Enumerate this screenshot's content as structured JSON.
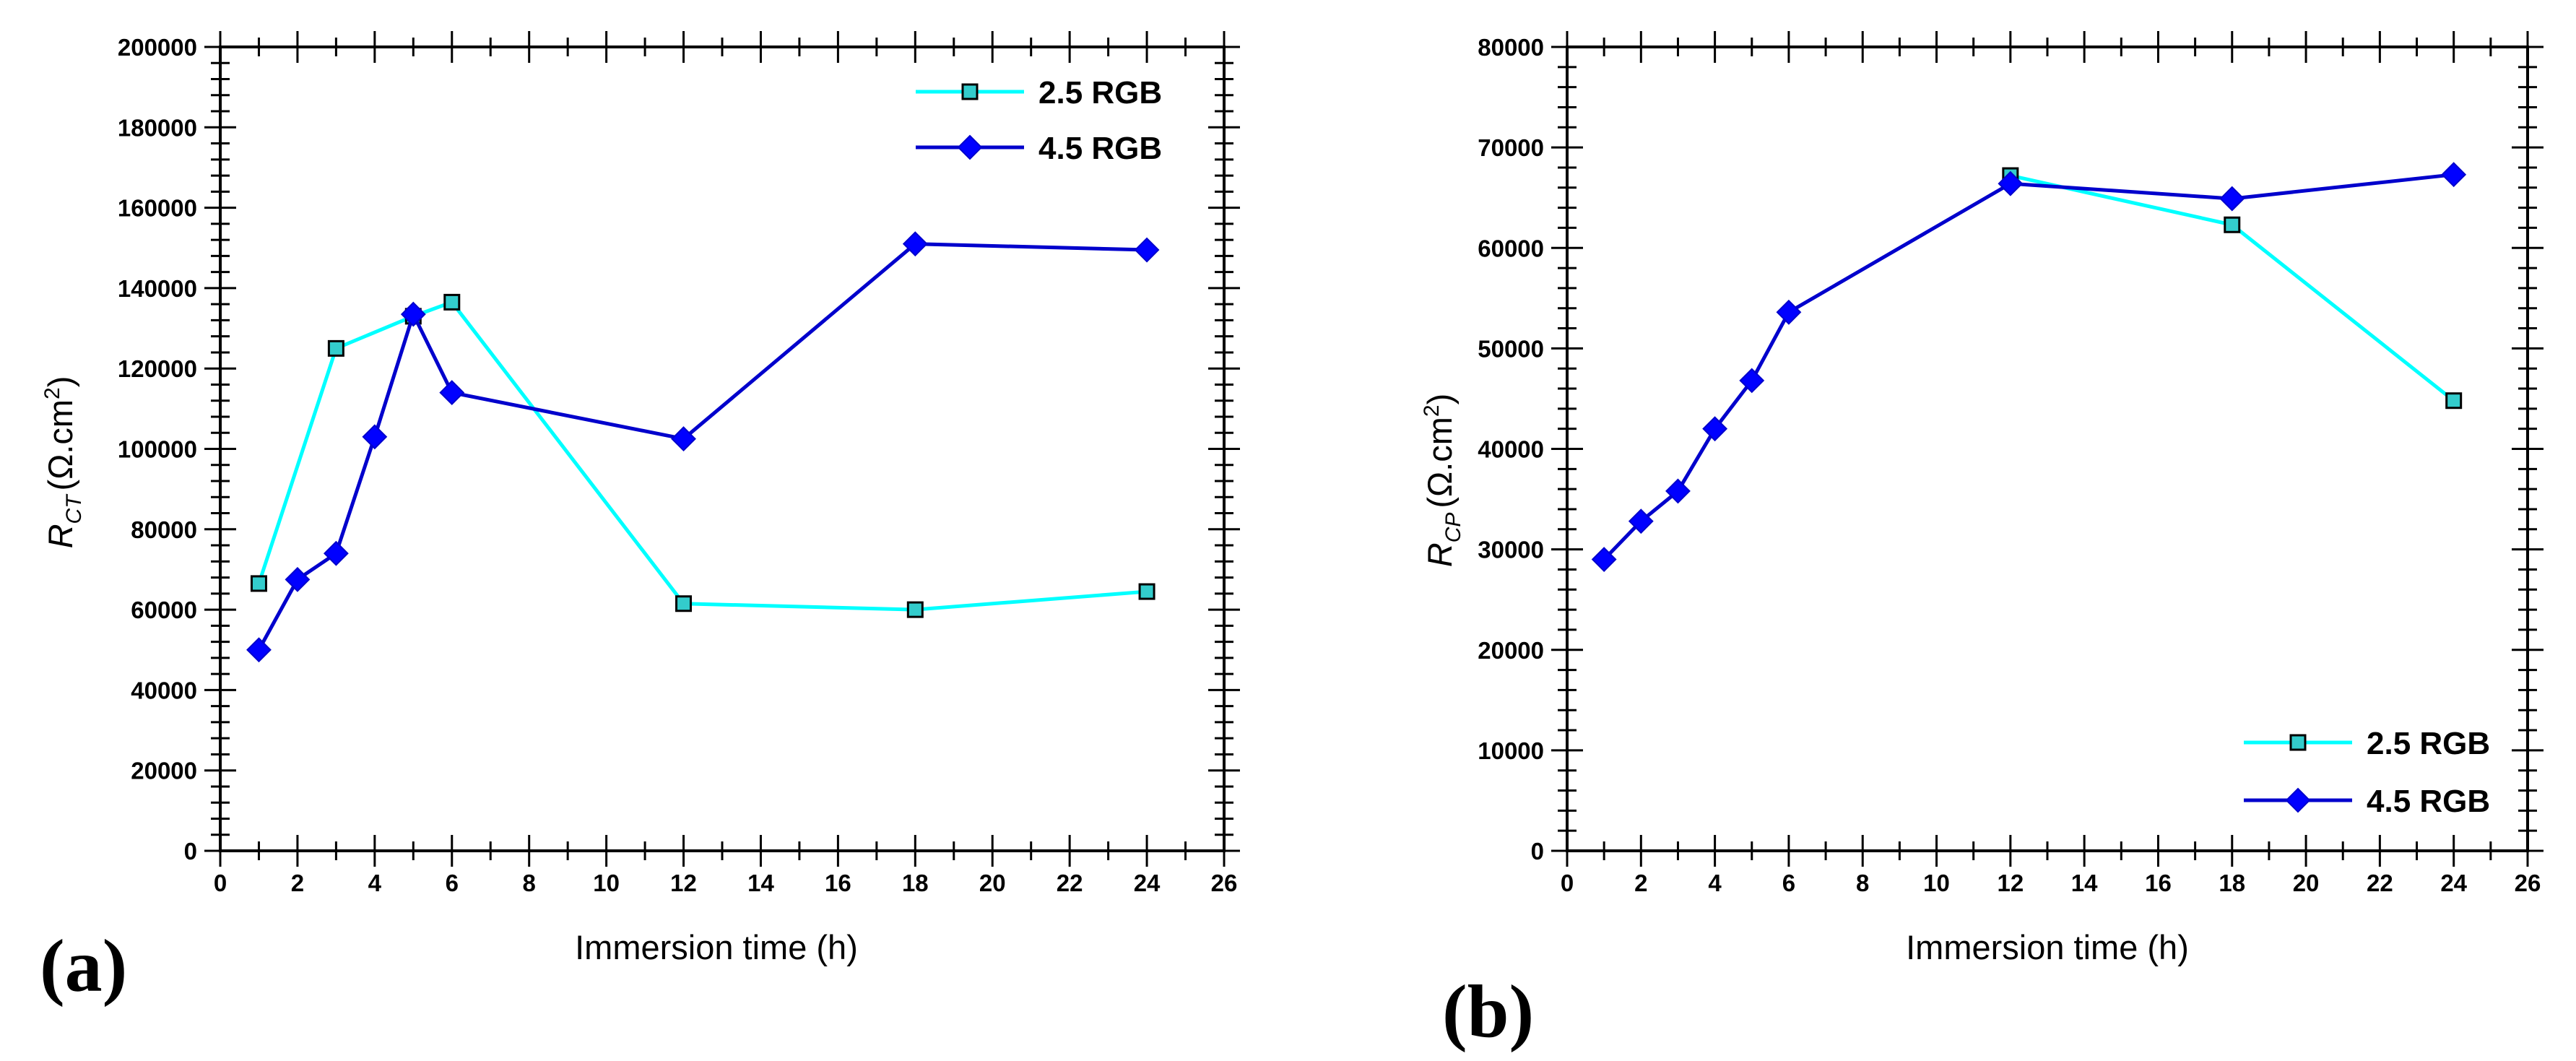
{
  "panels": [
    {
      "label": "(a)",
      "xlabel": "Immersion time (h)",
      "ylabel_main": "R",
      "ylabel_sub": "CT",
      "ylabel_rest": "(Ω.cm",
      "ylabel_sup": "2",
      "ylabel_close": ")"
    },
    {
      "label": "(b)",
      "xlabel": "Immersion time (h)",
      "ylabel_main": "R",
      "ylabel_sub": "CP",
      "ylabel_rest": "(Ω.cm",
      "ylabel_sup": "2",
      "ylabel_close": ")"
    }
  ],
  "chart_data": [
    {
      "type": "line",
      "xlabel": "Immersion time (h)",
      "ylabel": "R_CT (Ω.cm²)",
      "xlim": [
        0,
        26
      ],
      "ylim": [
        0,
        200000
      ],
      "xticks": [
        0,
        2,
        4,
        6,
        8,
        10,
        12,
        14,
        16,
        18,
        20,
        22,
        24,
        26
      ],
      "yticks": [
        0,
        20000,
        40000,
        60000,
        80000,
        100000,
        120000,
        140000,
        160000,
        180000,
        200000
      ],
      "legend_position": "top-right",
      "series": [
        {
          "name": "2.5 RGB",
          "color": "#00FFFF",
          "marker": "square",
          "marker_fill": "#33CCCC",
          "x": [
            1,
            3,
            5,
            6,
            12,
            18,
            24
          ],
          "y": [
            66500,
            125000,
            133000,
            136500,
            61500,
            60000,
            64500
          ]
        },
        {
          "name": "4.5 RGB",
          "color": "#0000CC",
          "marker": "diamond",
          "marker_fill": "#0000FF",
          "x": [
            1,
            2,
            3,
            4,
            5,
            6,
            12,
            18,
            24
          ],
          "y": [
            50000,
            67500,
            74000,
            103000,
            133500,
            114000,
            102500,
            151000,
            149500
          ]
        }
      ]
    },
    {
      "type": "line",
      "xlabel": "Immersion time (h)",
      "ylabel": "R_CP (Ω.cm²)",
      "xlim": [
        0,
        26
      ],
      "ylim": [
        0,
        80000
      ],
      "xticks": [
        0,
        2,
        4,
        6,
        8,
        10,
        12,
        14,
        16,
        18,
        20,
        22,
        24,
        26
      ],
      "yticks": [
        0,
        10000,
        20000,
        30000,
        40000,
        50000,
        60000,
        70000,
        80000
      ],
      "legend_position": "bottom-right",
      "series": [
        {
          "name": "2.5 RGB",
          "color": "#00FFFF",
          "marker": "square",
          "marker_fill": "#33CCCC",
          "x": [
            12,
            18,
            24
          ],
          "y": [
            67200,
            62300,
            44800
          ]
        },
        {
          "name": "4.5 RGB",
          "color": "#0000CC",
          "marker": "diamond",
          "marker_fill": "#0000FF",
          "x": [
            1,
            2,
            3,
            4,
            5,
            6,
            12,
            18,
            24
          ],
          "y": [
            29000,
            32800,
            35800,
            42000,
            46800,
            53600,
            66400,
            64900,
            67300
          ]
        }
      ]
    }
  ]
}
